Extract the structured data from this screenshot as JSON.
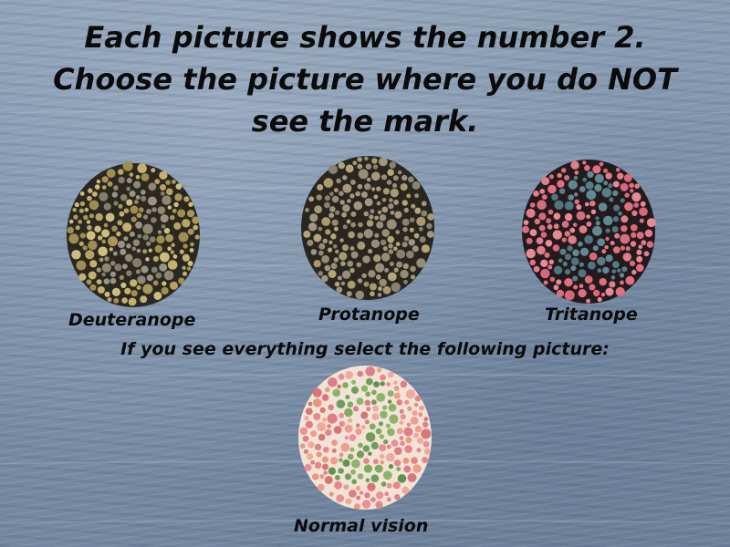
{
  "title": {
    "line1": "Each picture shows the number 2.",
    "line2": "Choose the picture where you do NOT",
    "line3": "see the mark."
  },
  "instruction": "If you see everything select the following picture:",
  "plates": [
    {
      "key": "deuteranope",
      "label": "Deuteranope",
      "digit": "2",
      "digit_visibility": "faint",
      "colors": {
        "background": [
          "#b7a464",
          "#c4b170",
          "#a8975a",
          "#cdbd7e",
          "#9e8e52"
        ],
        "figure": [
          "#8f8774",
          "#9c9482",
          "#857d6b"
        ],
        "gap": "#2b2821"
      }
    },
    {
      "key": "protanope",
      "label": "Protanope",
      "digit": "2",
      "digit_visibility": "hidden",
      "colors": {
        "background": [
          "#a89a6e",
          "#958b76",
          "#b3a57a",
          "#8a8170",
          "#9f9580"
        ],
        "figure": [
          "#a69878",
          "#978e7a"
        ],
        "gap": "#29261f"
      }
    },
    {
      "key": "tritanope",
      "label": "Tritanope",
      "digit": "2",
      "digit_visibility": "visible",
      "colors": {
        "background": [
          "#e0707e",
          "#e27d8a",
          "#d9667a",
          "#e88a96",
          "#d66e7e"
        ],
        "figure": [
          "#567e88",
          "#4f7580",
          "#628893"
        ],
        "gap": "#231a1d"
      }
    },
    {
      "key": "normal",
      "label": "Normal vision",
      "digit": "2",
      "digit_visibility": "visible",
      "colors": {
        "background": [
          "#e8868c",
          "#ef9e8e",
          "#e49a7f",
          "#ea8f95",
          "#dc7f86",
          "#f0a99a",
          "#d97575"
        ],
        "figure": [
          "#6f9e5a",
          "#7fab61",
          "#5f9150",
          "#8bb46b"
        ],
        "gap": "#f1e4d6"
      }
    }
  ]
}
